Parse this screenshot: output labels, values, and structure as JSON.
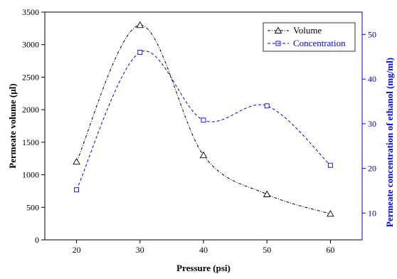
{
  "chart_data": {
    "type": "line",
    "x": [
      20,
      30,
      40,
      50,
      60
    ],
    "xlabel": "Pressure (psi)",
    "xlim": [
      15,
      65
    ],
    "xticks": [
      20,
      30,
      40,
      50,
      60
    ],
    "ylabel": "Permeate volume (µl)",
    "ylim": [
      0,
      3500
    ],
    "yticks": [
      0,
      500,
      1000,
      1500,
      2000,
      2500,
      3000,
      3500
    ],
    "y2label": "Permeate concentration of ethanol (mg/ml)",
    "y2lim": [
      4,
      55
    ],
    "y2ticks": [
      10,
      20,
      30,
      40,
      50
    ],
    "legend_position": "top-right",
    "series": [
      {
        "name": "Volume",
        "axis": "left",
        "marker": "triangle",
        "line_style": "dash-dot",
        "color": "#000000",
        "values": [
          1200,
          3300,
          1300,
          700,
          400
        ]
      },
      {
        "name": "Concentration",
        "axis": "right",
        "marker": "square",
        "line_style": "dashed",
        "color": "#0000ff",
        "values": [
          15.2,
          46,
          30.8,
          34,
          20.7
        ]
      }
    ]
  }
}
